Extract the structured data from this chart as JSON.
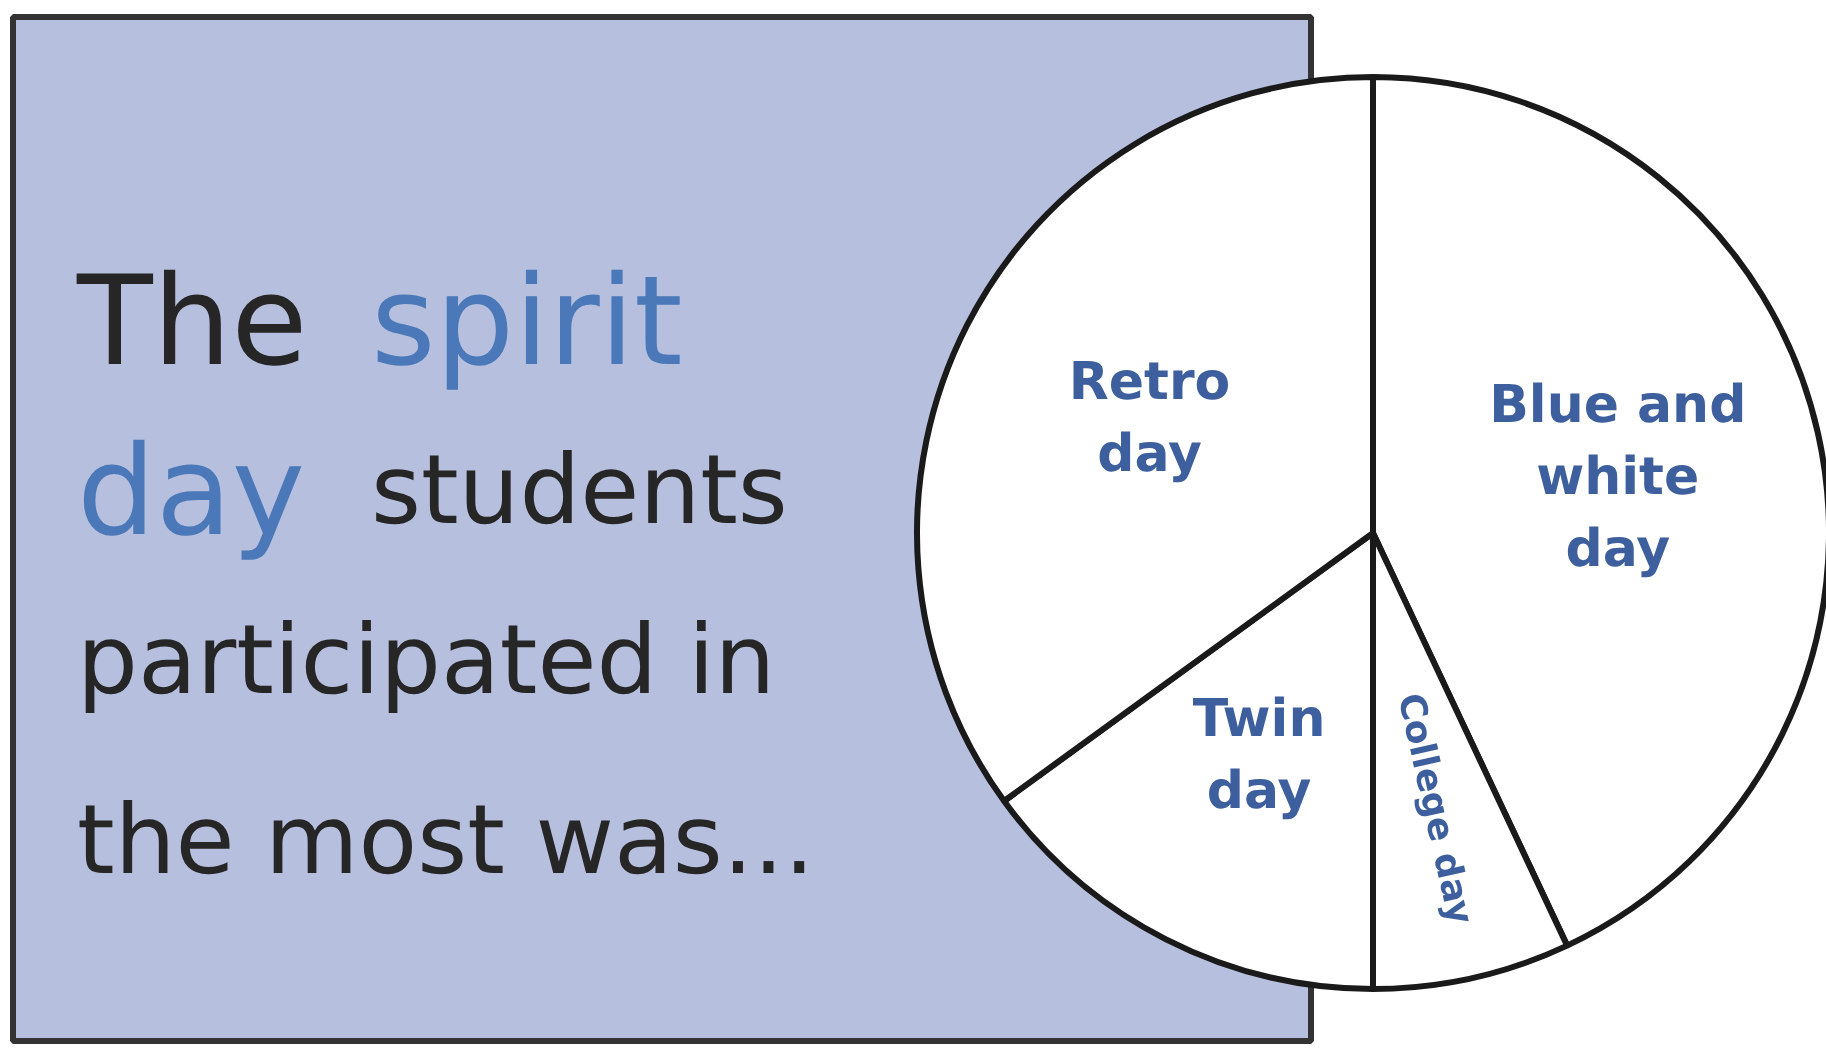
{
  "chart_data": {
    "type": "pie",
    "title": "The spirit day students participated in the most was...",
    "categories": [
      "Blue and white day",
      "College day",
      "Twin day",
      "Retro day"
    ],
    "values": [
      43,
      7,
      15,
      35
    ],
    "colors": [
      "#ffffff",
      "#ffffff",
      "#ffffff",
      "#ffffff"
    ]
  }
}
